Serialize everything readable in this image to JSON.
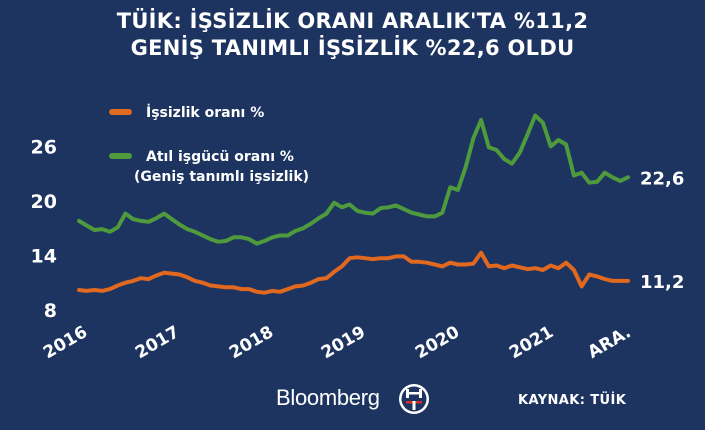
{
  "title_line1": "TÜİK: İŞSİZLİK ORANI ARALIK'TA %11,2",
  "title_line2": "GENİŞ TANIMLI İŞSİZLİK %22,6 OLDU",
  "source": "KAYNAK: TÜİK",
  "logo_text": "Bloomberg",
  "colors": {
    "background": "#1d3461",
    "unemployment": "#e0681f",
    "broad": "#4e9a3c",
    "text": "#ffffff"
  },
  "chart_data": {
    "type": "line",
    "x_labels": [
      "2016",
      "2017",
      "2018",
      "2019",
      "2020",
      "2021",
      "ARA."
    ],
    "y_ticks": [
      8,
      14,
      20,
      26
    ],
    "ylim": [
      8,
      30
    ],
    "grid": false,
    "legend": [
      {
        "series": "unemployment",
        "label": "İşsizlik oranı %"
      },
      {
        "series": "broad",
        "label": "Atıl işgücü oranı %",
        "sublabel": "(Geniş tanımlı işsizlik)"
      }
    ],
    "series": [
      {
        "key": "unemployment",
        "name": "İşsizlik oranı %",
        "color": "#e0681f",
        "end_label": "11,2",
        "values": [
          10.2,
          10.1,
          10.2,
          10.1,
          10.3,
          10.7,
          11.0,
          11.2,
          11.5,
          11.4,
          11.8,
          12.1,
          12.0,
          11.9,
          11.6,
          11.2,
          11.0,
          10.7,
          10.6,
          10.5,
          10.5,
          10.3,
          10.3,
          10.0,
          9.9,
          10.1,
          10.0,
          10.3,
          10.6,
          10.7,
          11.0,
          11.4,
          11.5,
          12.2,
          12.8,
          13.7,
          13.8,
          13.7,
          13.6,
          13.7,
          13.7,
          13.9,
          13.9,
          13.3,
          13.3,
          13.2,
          13.0,
          12.8,
          13.2,
          13.0,
          13.0,
          13.1,
          14.3,
          12.8,
          12.9,
          12.6,
          12.9,
          12.7,
          12.5,
          12.6,
          12.4,
          12.9,
          12.6,
          13.2,
          12.4,
          10.6,
          11.9,
          11.7,
          11.4,
          11.2,
          11.2,
          11.2
        ]
      },
      {
        "key": "broad",
        "name": "Atıl işgücü oranı %",
        "color": "#4e9a3c",
        "end_label": "22,6",
        "values": [
          17.8,
          17.3,
          16.8,
          16.9,
          16.6,
          17.1,
          18.6,
          18.0,
          17.8,
          17.7,
          18.1,
          18.6,
          18.0,
          17.4,
          16.9,
          16.6,
          16.2,
          15.8,
          15.5,
          15.6,
          16.0,
          16.0,
          15.8,
          15.3,
          15.6,
          16.0,
          16.2,
          16.2,
          16.7,
          17.0,
          17.5,
          18.1,
          18.6,
          19.8,
          19.3,
          19.6,
          18.9,
          18.7,
          18.6,
          19.2,
          19.3,
          19.5,
          19.1,
          18.7,
          18.5,
          18.3,
          18.3,
          18.7,
          21.5,
          21.2,
          23.7,
          26.9,
          28.9,
          25.9,
          25.6,
          24.6,
          24.1,
          25.3,
          27.3,
          29.4,
          28.6,
          26.0,
          26.7,
          26.2,
          22.8,
          23.1,
          22.0,
          22.1,
          23.1,
          22.6,
          22.2,
          22.6
        ]
      }
    ]
  }
}
